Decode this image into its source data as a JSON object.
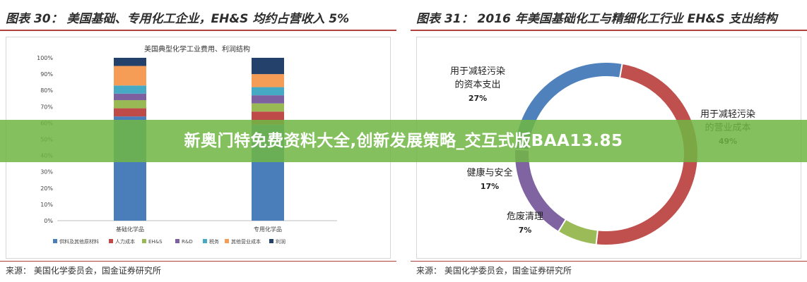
{
  "left_panel": {
    "title": "图表 30： 美国基础、专用化工企业，EH&S 均约占营收入 5%",
    "source": "来源： 美国化学委员会，国金证券研究所"
  },
  "right_panel": {
    "title": "图表 31： 2016 年美国基础化工与精细化工行业 EH&S 支出结构",
    "source": "来源： 美国化学委员会，国金证券研究所"
  },
  "banner": {
    "text": "新奥门特免费资料大全,创新发展策略_交互式版BAA13.85"
  },
  "colors": {
    "banner": "#70b743",
    "rule": "#b0413e"
  },
  "chart_data": [
    {
      "type": "bar",
      "stacked": true,
      "title": "美国典型化学工业费用、利润结构",
      "categories": [
        "基础化学品",
        "专用化学品"
      ],
      "y_ticks": [
        "0%",
        "10%",
        "20%",
        "30%",
        "40%",
        "50%",
        "60%",
        "70%",
        "80%",
        "90%",
        "100%"
      ],
      "ylim": [
        0,
        100
      ],
      "legend_position": "bottom",
      "series": [
        {
          "name": "供料及其他原材料",
          "color": "#4a7ebb",
          "values": [
            64,
            59
          ]
        },
        {
          "name": "人力成本",
          "color": "#be4b48",
          "values": [
            5,
            8
          ]
        },
        {
          "name": "EH&S",
          "color": "#98b954",
          "values": [
            5,
            5
          ]
        },
        {
          "name": "R&D",
          "color": "#7d60a0",
          "values": [
            4,
            5
          ]
        },
        {
          "name": "税务",
          "color": "#46aac5",
          "values": [
            5,
            5
          ]
        },
        {
          "name": "其他营业成本",
          "color": "#f59d56",
          "values": [
            12,
            8
          ]
        },
        {
          "name": "利润",
          "color": "#23416a",
          "values": [
            5,
            10
          ]
        }
      ]
    },
    {
      "type": "pie",
      "donut": true,
      "slices": [
        {
          "label": "用于减轻污染的营业成本",
          "value": 49,
          "pct_label": "49%",
          "color": "#c0504d"
        },
        {
          "label": "危废清理",
          "value": 7,
          "pct_label": "7%",
          "color": "#9bbb59"
        },
        {
          "label": "健康与安全",
          "value": 17,
          "pct_label": "17%",
          "color": "#8064a2"
        },
        {
          "label": "用于减轻污染的资本支出",
          "value": 27,
          "pct_label": "27%",
          "color": "#4f81bd"
        }
      ],
      "label_lines": [
        [
          "用于减轻污染",
          "的营业成本",
          "49%"
        ],
        [
          "危废清理",
          "7%"
        ],
        [
          "健康与安全",
          "17%"
        ],
        [
          "用于减轻污染",
          "的资本支出",
          "27%"
        ]
      ]
    }
  ]
}
